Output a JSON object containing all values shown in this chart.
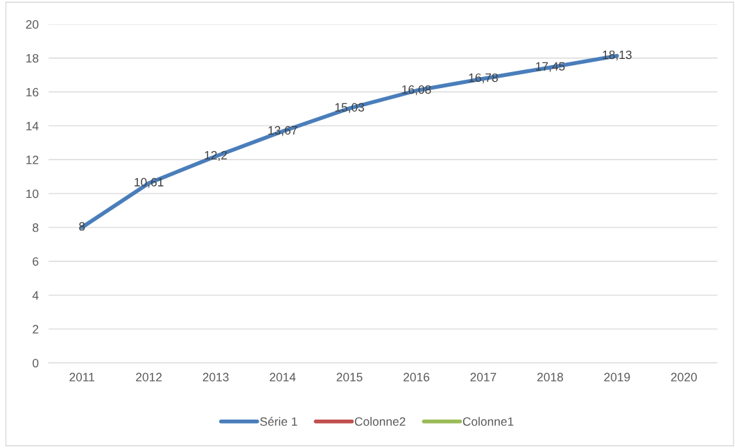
{
  "chart_data": {
    "type": "line",
    "categories": [
      "2011",
      "2012",
      "2013",
      "2014",
      "2015",
      "2016",
      "2017",
      "2018",
      "2019",
      "2020"
    ],
    "series": [
      {
        "name": "Série 1",
        "color": "#4a7ebb",
        "values": [
          8,
          10.61,
          12.2,
          13.67,
          15.03,
          16.08,
          16.78,
          17.45,
          18.13,
          null
        ],
        "value_labels": [
          "8",
          "10,61",
          "12,2",
          "13,67",
          "15,03",
          "16,08",
          "16,78",
          "17,45",
          "18,13",
          null
        ]
      },
      {
        "name": "Colonne2",
        "color": "#c0504d",
        "values": [
          null,
          null,
          null,
          null,
          null,
          null,
          null,
          null,
          null,
          null
        ]
      },
      {
        "name": "Colonne1",
        "color": "#9bbb59",
        "values": [
          null,
          null,
          null,
          null,
          null,
          null,
          null,
          null,
          null,
          null
        ]
      }
    ],
    "ylim": [
      0,
      20
    ],
    "yticks": [
      0,
      2,
      4,
      6,
      8,
      10,
      12,
      14,
      16,
      18,
      20
    ],
    "grid": "y",
    "legend": "bottom",
    "marker": "none",
    "line_style": "solid"
  }
}
